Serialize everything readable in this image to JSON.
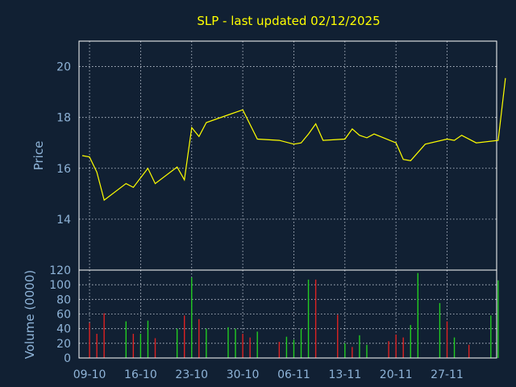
{
  "chart_data": {
    "type": "line",
    "title": "SLP - last updated 02/12/2025",
    "colors": {
      "background": "#112033",
      "axes": "#ffffff",
      "grid": "#c8d0dc",
      "text": "#8fb4d8",
      "title": "#ffff00",
      "price_line": "#ffff00",
      "volume_up": "#22cc22",
      "volume_down": "#dd2222"
    },
    "x_tick_labels": [
      "09-10",
      "16-10",
      "23-10",
      "30-10",
      "06-11",
      "13-11",
      "20-11",
      "27-11"
    ],
    "price_panel": {
      "ylabel": "Price",
      "ylim": [
        12,
        21
      ],
      "yticks": [
        14,
        16,
        18,
        20
      ],
      "grid": true,
      "series": [
        {
          "type": "line",
          "points": [
            {
              "day": 0,
              "value": 16.5
            },
            {
              "day": 1,
              "value": 16.45
            },
            {
              "day": 2,
              "value": 15.85
            },
            {
              "day": 3,
              "value": 14.75
            },
            {
              "day": 6,
              "value": 15.4
            },
            {
              "day": 7,
              "value": 15.25
            },
            {
              "day": 9,
              "value": 16.0
            },
            {
              "day": 10,
              "value": 15.4
            },
            {
              "day": 13,
              "value": 16.05
            },
            {
              "day": 14,
              "value": 15.55
            },
            {
              "day": 15,
              "value": 17.6
            },
            {
              "day": 16,
              "value": 17.25
            },
            {
              "day": 17,
              "value": 17.8
            },
            {
              "day": 20,
              "value": 18.1
            },
            {
              "day": 22,
              "value": 18.3
            },
            {
              "day": 24,
              "value": 17.15
            },
            {
              "day": 27,
              "value": 17.1
            },
            {
              "day": 29,
              "value": 16.95
            },
            {
              "day": 30,
              "value": 17.0
            },
            {
              "day": 31,
              "value": 17.35
            },
            {
              "day": 32,
              "value": 17.75
            },
            {
              "day": 33,
              "value": 17.1
            },
            {
              "day": 36,
              "value": 17.15
            },
            {
              "day": 37,
              "value": 17.55
            },
            {
              "day": 38,
              "value": 17.3
            },
            {
              "day": 39,
              "value": 17.2
            },
            {
              "day": 40,
              "value": 17.35
            },
            {
              "day": 43,
              "value": 17.0
            },
            {
              "day": 44,
              "value": 16.35
            },
            {
              "day": 45,
              "value": 16.3
            },
            {
              "day": 47,
              "value": 16.95
            },
            {
              "day": 50,
              "value": 17.15
            },
            {
              "day": 51,
              "value": 17.1
            },
            {
              "day": 52,
              "value": 17.3
            },
            {
              "day": 54,
              "value": 17.0
            },
            {
              "day": 57,
              "value": 17.1
            },
            {
              "day": 58,
              "value": 19.55
            }
          ]
        }
      ]
    },
    "volume_panel": {
      "ylabel": "Volume (0000)",
      "ylim": [
        0,
        120
      ],
      "yticks": [
        0,
        20,
        40,
        60,
        80,
        100,
        120
      ],
      "grid": true,
      "series": [
        {
          "type": "bar",
          "bars": [
            {
              "day": 1,
              "value": 48,
              "dir": "down"
            },
            {
              "day": 2,
              "value": 33,
              "dir": "down"
            },
            {
              "day": 3,
              "value": 61,
              "dir": "down"
            },
            {
              "day": 6,
              "value": 50,
              "dir": "up"
            },
            {
              "day": 7,
              "value": 33,
              "dir": "down"
            },
            {
              "day": 8,
              "value": 33,
              "dir": "up"
            },
            {
              "day": 9,
              "value": 51,
              "dir": "up"
            },
            {
              "day": 10,
              "value": 27,
              "dir": "down"
            },
            {
              "day": 13,
              "value": 40,
              "dir": "up"
            },
            {
              "day": 14,
              "value": 58,
              "dir": "down"
            },
            {
              "day": 15,
              "value": 110,
              "dir": "up"
            },
            {
              "day": 16,
              "value": 53,
              "dir": "down"
            },
            {
              "day": 17,
              "value": 40,
              "dir": "up"
            },
            {
              "day": 20,
              "value": 42,
              "dir": "up"
            },
            {
              "day": 21,
              "value": 40,
              "dir": "up"
            },
            {
              "day": 22,
              "value": 33,
              "dir": "down"
            },
            {
              "day": 23,
              "value": 28,
              "dir": "down"
            },
            {
              "day": 24,
              "value": 36,
              "dir": "up"
            },
            {
              "day": 27,
              "value": 22,
              "dir": "down"
            },
            {
              "day": 28,
              "value": 29,
              "dir": "up"
            },
            {
              "day": 29,
              "value": 25,
              "dir": "up"
            },
            {
              "day": 30,
              "value": 40,
              "dir": "up"
            },
            {
              "day": 31,
              "value": 107,
              "dir": "up"
            },
            {
              "day": 32,
              "value": 107,
              "dir": "down"
            },
            {
              "day": 35,
              "value": 59,
              "dir": "down"
            },
            {
              "day": 36,
              "value": 20,
              "dir": "up"
            },
            {
              "day": 37,
              "value": 15,
              "dir": "down"
            },
            {
              "day": 38,
              "value": 31,
              "dir": "up"
            },
            {
              "day": 39,
              "value": 18,
              "dir": "up"
            },
            {
              "day": 42,
              "value": 23,
              "dir": "down"
            },
            {
              "day": 43,
              "value": 32,
              "dir": "down"
            },
            {
              "day": 44,
              "value": 28,
              "dir": "down"
            },
            {
              "day": 45,
              "value": 45,
              "dir": "up"
            },
            {
              "day": 46,
              "value": 116,
              "dir": "up"
            },
            {
              "day": 49,
              "value": 75,
              "dir": "up"
            },
            {
              "day": 50,
              "value": 50,
              "dir": "down"
            },
            {
              "day": 51,
              "value": 28,
              "dir": "up"
            },
            {
              "day": 53,
              "value": 18,
              "dir": "down"
            },
            {
              "day": 56,
              "value": 58,
              "dir": "up"
            },
            {
              "day": 57,
              "value": 106,
              "dir": "up"
            }
          ]
        }
      ]
    }
  }
}
